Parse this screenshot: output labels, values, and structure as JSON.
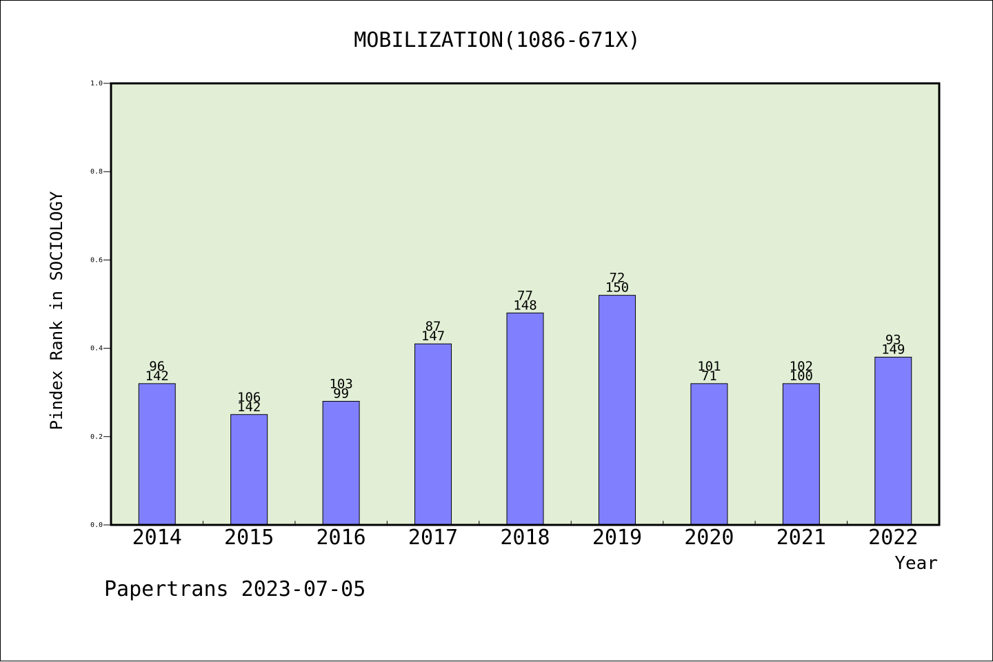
{
  "chart_data": {
    "type": "bar",
    "title": "MOBILIZATION(1086-671X)",
    "xlabel": "Year",
    "ylabel": "Pindex Rank in SOCIOLOGY",
    "ylim": [
      0,
      1.0
    ],
    "yticks": [
      "0.0",
      "0.2",
      "0.4",
      "0.6",
      "0.8",
      "1.0"
    ],
    "categories": [
      "2014",
      "2015",
      "2016",
      "2017",
      "2018",
      "2019",
      "2020",
      "2021",
      "2022"
    ],
    "values": [
      0.32,
      0.25,
      0.28,
      0.41,
      0.48,
      0.52,
      0.32,
      0.32,
      0.38
    ],
    "label_top": [
      "96",
      "106",
      "103",
      "87",
      "77",
      "72",
      "101",
      "102",
      "93"
    ],
    "label_bottom": [
      "142",
      "142",
      "99",
      "147",
      "148",
      "150",
      "71",
      "100",
      "149"
    ],
    "grid": false,
    "colors": {
      "plot_bg": "#e2efd6",
      "bar": "#8080ff",
      "axis": "#000000"
    }
  },
  "footer": "Papertrans 2023-07-05"
}
